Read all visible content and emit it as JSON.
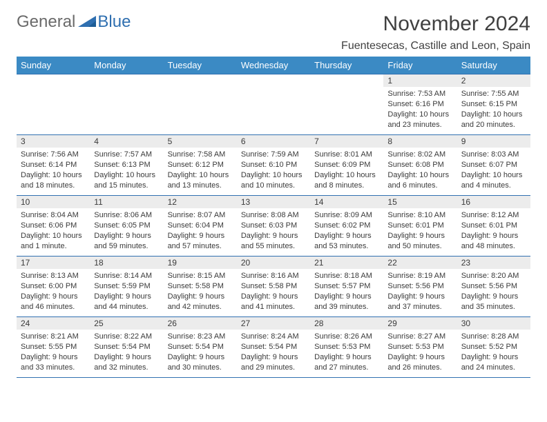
{
  "logo": {
    "general": "General",
    "blue": "Blue"
  },
  "header": {
    "month_title": "November 2024",
    "location": "Fuentesecas, Castille and Leon, Spain"
  },
  "colors": {
    "header_bg": "#3b8ac4",
    "header_text": "#ffffff",
    "row_divider": "#2f6fb0",
    "daynum_bg": "#ececec",
    "text": "#3a3a3a",
    "logo_general": "#6a6a6a",
    "logo_blue": "#2f6fb0",
    "page_bg": "#ffffff"
  },
  "typography": {
    "month_title_fontsize": 30,
    "location_fontsize": 16,
    "dayheader_fontsize": 13,
    "daynum_fontsize": 12,
    "body_fontsize": 11
  },
  "calendar": {
    "day_headers": [
      "Sunday",
      "Monday",
      "Tuesday",
      "Wednesday",
      "Thursday",
      "Friday",
      "Saturday"
    ],
    "weeks": [
      [
        null,
        null,
        null,
        null,
        null,
        {
          "num": "1",
          "sunrise": "Sunrise: 7:53 AM",
          "sunset": "Sunset: 6:16 PM",
          "daylight": "Daylight: 10 hours and 23 minutes."
        },
        {
          "num": "2",
          "sunrise": "Sunrise: 7:55 AM",
          "sunset": "Sunset: 6:15 PM",
          "daylight": "Daylight: 10 hours and 20 minutes."
        }
      ],
      [
        {
          "num": "3",
          "sunrise": "Sunrise: 7:56 AM",
          "sunset": "Sunset: 6:14 PM",
          "daylight": "Daylight: 10 hours and 18 minutes."
        },
        {
          "num": "4",
          "sunrise": "Sunrise: 7:57 AM",
          "sunset": "Sunset: 6:13 PM",
          "daylight": "Daylight: 10 hours and 15 minutes."
        },
        {
          "num": "5",
          "sunrise": "Sunrise: 7:58 AM",
          "sunset": "Sunset: 6:12 PM",
          "daylight": "Daylight: 10 hours and 13 minutes."
        },
        {
          "num": "6",
          "sunrise": "Sunrise: 7:59 AM",
          "sunset": "Sunset: 6:10 PM",
          "daylight": "Daylight: 10 hours and 10 minutes."
        },
        {
          "num": "7",
          "sunrise": "Sunrise: 8:01 AM",
          "sunset": "Sunset: 6:09 PM",
          "daylight": "Daylight: 10 hours and 8 minutes."
        },
        {
          "num": "8",
          "sunrise": "Sunrise: 8:02 AM",
          "sunset": "Sunset: 6:08 PM",
          "daylight": "Daylight: 10 hours and 6 minutes."
        },
        {
          "num": "9",
          "sunrise": "Sunrise: 8:03 AM",
          "sunset": "Sunset: 6:07 PM",
          "daylight": "Daylight: 10 hours and 4 minutes."
        }
      ],
      [
        {
          "num": "10",
          "sunrise": "Sunrise: 8:04 AM",
          "sunset": "Sunset: 6:06 PM",
          "daylight": "Daylight: 10 hours and 1 minute."
        },
        {
          "num": "11",
          "sunrise": "Sunrise: 8:06 AM",
          "sunset": "Sunset: 6:05 PM",
          "daylight": "Daylight: 9 hours and 59 minutes."
        },
        {
          "num": "12",
          "sunrise": "Sunrise: 8:07 AM",
          "sunset": "Sunset: 6:04 PM",
          "daylight": "Daylight: 9 hours and 57 minutes."
        },
        {
          "num": "13",
          "sunrise": "Sunrise: 8:08 AM",
          "sunset": "Sunset: 6:03 PM",
          "daylight": "Daylight: 9 hours and 55 minutes."
        },
        {
          "num": "14",
          "sunrise": "Sunrise: 8:09 AM",
          "sunset": "Sunset: 6:02 PM",
          "daylight": "Daylight: 9 hours and 53 minutes."
        },
        {
          "num": "15",
          "sunrise": "Sunrise: 8:10 AM",
          "sunset": "Sunset: 6:01 PM",
          "daylight": "Daylight: 9 hours and 50 minutes."
        },
        {
          "num": "16",
          "sunrise": "Sunrise: 8:12 AM",
          "sunset": "Sunset: 6:01 PM",
          "daylight": "Daylight: 9 hours and 48 minutes."
        }
      ],
      [
        {
          "num": "17",
          "sunrise": "Sunrise: 8:13 AM",
          "sunset": "Sunset: 6:00 PM",
          "daylight": "Daylight: 9 hours and 46 minutes."
        },
        {
          "num": "18",
          "sunrise": "Sunrise: 8:14 AM",
          "sunset": "Sunset: 5:59 PM",
          "daylight": "Daylight: 9 hours and 44 minutes."
        },
        {
          "num": "19",
          "sunrise": "Sunrise: 8:15 AM",
          "sunset": "Sunset: 5:58 PM",
          "daylight": "Daylight: 9 hours and 42 minutes."
        },
        {
          "num": "20",
          "sunrise": "Sunrise: 8:16 AM",
          "sunset": "Sunset: 5:58 PM",
          "daylight": "Daylight: 9 hours and 41 minutes."
        },
        {
          "num": "21",
          "sunrise": "Sunrise: 8:18 AM",
          "sunset": "Sunset: 5:57 PM",
          "daylight": "Daylight: 9 hours and 39 minutes."
        },
        {
          "num": "22",
          "sunrise": "Sunrise: 8:19 AM",
          "sunset": "Sunset: 5:56 PM",
          "daylight": "Daylight: 9 hours and 37 minutes."
        },
        {
          "num": "23",
          "sunrise": "Sunrise: 8:20 AM",
          "sunset": "Sunset: 5:56 PM",
          "daylight": "Daylight: 9 hours and 35 minutes."
        }
      ],
      [
        {
          "num": "24",
          "sunrise": "Sunrise: 8:21 AM",
          "sunset": "Sunset: 5:55 PM",
          "daylight": "Daylight: 9 hours and 33 minutes."
        },
        {
          "num": "25",
          "sunrise": "Sunrise: 8:22 AM",
          "sunset": "Sunset: 5:54 PM",
          "daylight": "Daylight: 9 hours and 32 minutes."
        },
        {
          "num": "26",
          "sunrise": "Sunrise: 8:23 AM",
          "sunset": "Sunset: 5:54 PM",
          "daylight": "Daylight: 9 hours and 30 minutes."
        },
        {
          "num": "27",
          "sunrise": "Sunrise: 8:24 AM",
          "sunset": "Sunset: 5:54 PM",
          "daylight": "Daylight: 9 hours and 29 minutes."
        },
        {
          "num": "28",
          "sunrise": "Sunrise: 8:26 AM",
          "sunset": "Sunset: 5:53 PM",
          "daylight": "Daylight: 9 hours and 27 minutes."
        },
        {
          "num": "29",
          "sunrise": "Sunrise: 8:27 AM",
          "sunset": "Sunset: 5:53 PM",
          "daylight": "Daylight: 9 hours and 26 minutes."
        },
        {
          "num": "30",
          "sunrise": "Sunrise: 8:28 AM",
          "sunset": "Sunset: 5:52 PM",
          "daylight": "Daylight: 9 hours and 24 minutes."
        }
      ]
    ]
  }
}
